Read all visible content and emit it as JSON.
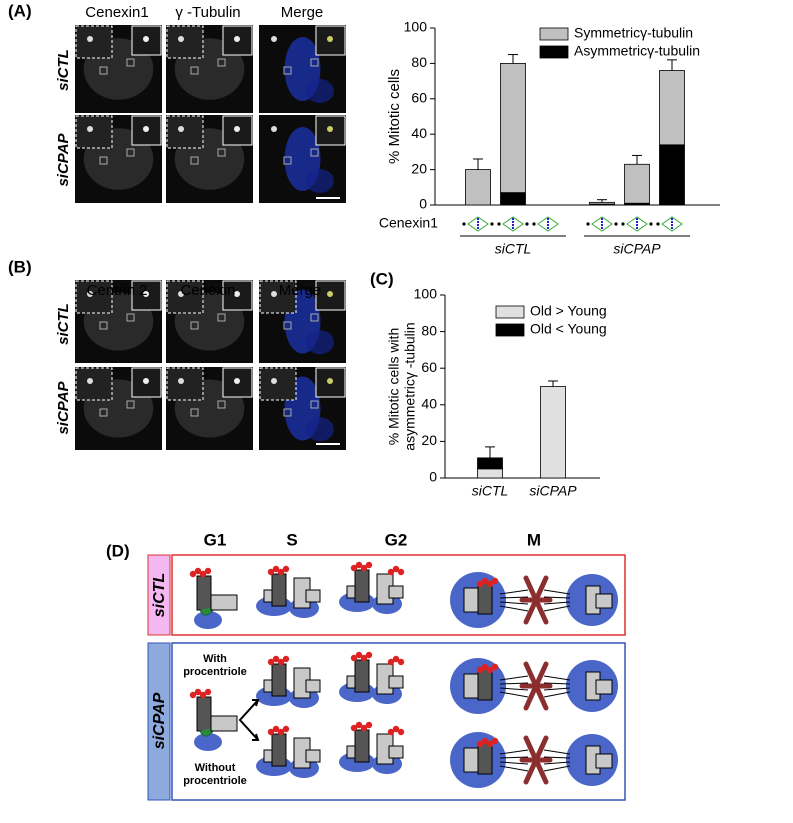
{
  "chart_data": [
    {
      "type": "bar",
      "stacked": true,
      "ylabel": "% Mitotic cells",
      "xlabel": "Cenexin1",
      "categories": [
        null,
        null,
        null,
        null,
        null,
        null
      ],
      "group_labels": [
        "siCTL",
        "siCPAP"
      ],
      "series": [
        {
          "name": "Asymmetricγ-tubulin",
          "color": "#000000",
          "values": [
            0,
            7,
            0,
            0.5,
            1,
            34
          ]
        },
        {
          "name": "Symmetricγ-tubulin",
          "color": "#c0c0c0",
          "values": [
            20,
            73,
            0,
            1,
            22,
            42
          ],
          "errors": [
            6,
            5,
            null,
            1.5,
            5,
            6
          ]
        }
      ],
      "legend_reversed": true,
      "ylim": [
        0,
        100
      ],
      "yticks": [
        0,
        20,
        40,
        60,
        80,
        100
      ]
    },
    {
      "type": "bar",
      "stacked": true,
      "ylabel": [
        "% Mitotic cells with",
        "asymmetricγ -tubulin"
      ],
      "categories": [
        "siCTL",
        "siCPAP"
      ],
      "series": [
        {
          "name": "Old > Young",
          "color": "#e0e0e0",
          "values": [
            5,
            50
          ]
        },
        {
          "name": "Old < Young",
          "color": "#000000",
          "values": [
            6,
            0
          ],
          "errors": [
            6,
            3
          ]
        }
      ],
      "legend_reversed": false,
      "ylim": [
        0,
        100
      ],
      "yticks": [
        0,
        20,
        40,
        60,
        80,
        100
      ]
    }
  ],
  "panels": {
    "A": {
      "label": "(A)",
      "columns": [
        "Cenexin1",
        "γ -Tubulin",
        "Merge"
      ],
      "rows": [
        "siCTL",
        "siCPAP"
      ]
    },
    "B": {
      "label": "(B)",
      "columns": [
        "Centrin 2",
        "Cenexin",
        "Merge"
      ],
      "rows": [
        "siCTL",
        "siCPAP"
      ]
    },
    "C": {
      "label": "(C)"
    },
    "D": {
      "label": "(D)",
      "phases": [
        "G1",
        "S",
        "G2",
        "M"
      ],
      "rows": [
        "siCTL",
        "siCPAP"
      ],
      "notes": [
        "With procentriole",
        "Without procentriole"
      ]
    }
  }
}
